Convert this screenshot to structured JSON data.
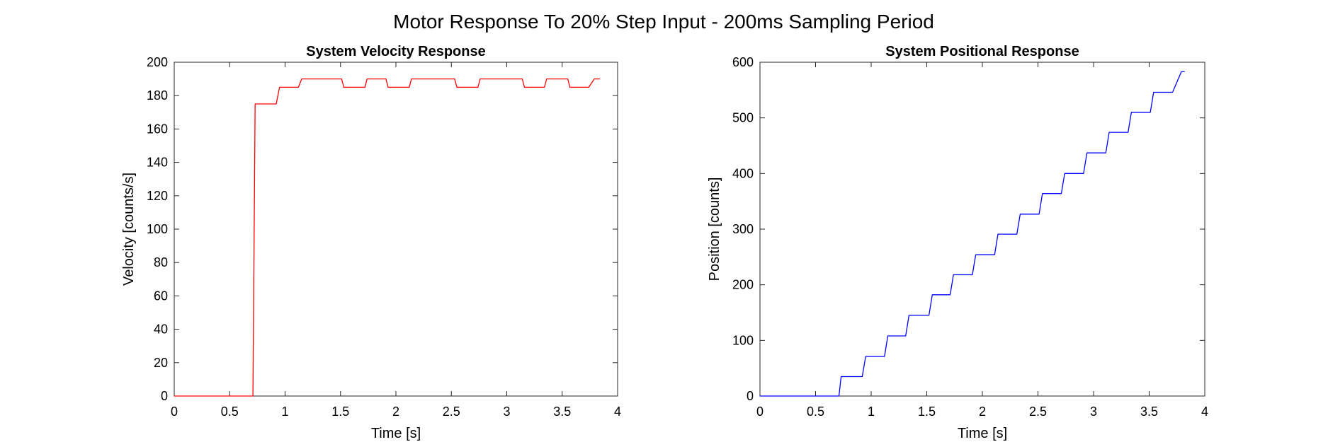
{
  "figure_title": "Motor Response To 20% Step Input - 200ms Sampling Period",
  "chart_data": [
    {
      "type": "line",
      "title": "System Velocity Response",
      "xlabel": "Time [s]",
      "ylabel": "Velocity [counts/s]",
      "xlim": [
        0,
        4
      ],
      "ylim": [
        0,
        200
      ],
      "xticks": [
        0,
        0.5,
        1,
        1.5,
        2,
        2.5,
        3,
        3.5,
        4
      ],
      "xtick_labels": [
        "0",
        "0.5",
        "1",
        "1.5",
        "2",
        "2.5",
        "3",
        "3.5",
        "4"
      ],
      "yticks": [
        0,
        20,
        40,
        60,
        80,
        100,
        120,
        140,
        160,
        180,
        200
      ],
      "ytick_labels": [
        "0",
        "20",
        "40",
        "60",
        "80",
        "100",
        "120",
        "140",
        "160",
        "180",
        "200"
      ],
      "grid": false,
      "series": [
        {
          "color": "#ff0000",
          "x": [
            0,
            0.71,
            0.73,
            0.92,
            0.95,
            1.12,
            1.15,
            1.51,
            1.53,
            1.72,
            1.74,
            1.91,
            1.93,
            2.12,
            2.14,
            2.53,
            2.55,
            2.74,
            2.76,
            3.14,
            3.16,
            3.34,
            3.36,
            3.55,
            3.57,
            3.74,
            3.79,
            3.84
          ],
          "y": [
            0,
            0,
            175,
            175,
            185,
            185,
            190,
            190,
            185,
            185,
            190,
            190,
            185,
            185,
            190,
            190,
            185,
            185,
            190,
            190,
            185,
            185,
            190,
            190,
            185,
            185,
            190,
            190
          ]
        }
      ]
    },
    {
      "type": "line",
      "title": "System Positional Response",
      "xlabel": "Time [s]",
      "ylabel": "Position [counts]",
      "xlim": [
        0,
        4
      ],
      "ylim": [
        0,
        600
      ],
      "xticks": [
        0,
        0.5,
        1,
        1.5,
        2,
        2.5,
        3,
        3.5,
        4
      ],
      "xtick_labels": [
        "0",
        "0.5",
        "1",
        "1.5",
        "2",
        "2.5",
        "3",
        "3.5",
        "4"
      ],
      "yticks": [
        0,
        100,
        200,
        300,
        400,
        500,
        600
      ],
      "ytick_labels": [
        "0",
        "100",
        "200",
        "300",
        "400",
        "500",
        "600"
      ],
      "grid": false,
      "series": [
        {
          "color": "#0000ff",
          "x": [
            0,
            0.71,
            0.73,
            0.92,
            0.95,
            1.12,
            1.15,
            1.31,
            1.34,
            1.52,
            1.55,
            1.71,
            1.74,
            1.91,
            1.94,
            2.11,
            2.14,
            2.31,
            2.34,
            2.51,
            2.54,
            2.71,
            2.74,
            2.91,
            2.94,
            3.11,
            3.14,
            3.31,
            3.34,
            3.51,
            3.54,
            3.71,
            3.79,
            3.82
          ],
          "y": [
            0,
            0,
            35,
            35,
            71,
            71,
            108,
            108,
            145,
            145,
            182,
            182,
            218,
            218,
            254,
            254,
            291,
            291,
            327,
            327,
            364,
            364,
            400,
            400,
            437,
            437,
            474,
            474,
            510,
            510,
            546,
            546,
            583,
            583
          ]
        }
      ]
    }
  ]
}
